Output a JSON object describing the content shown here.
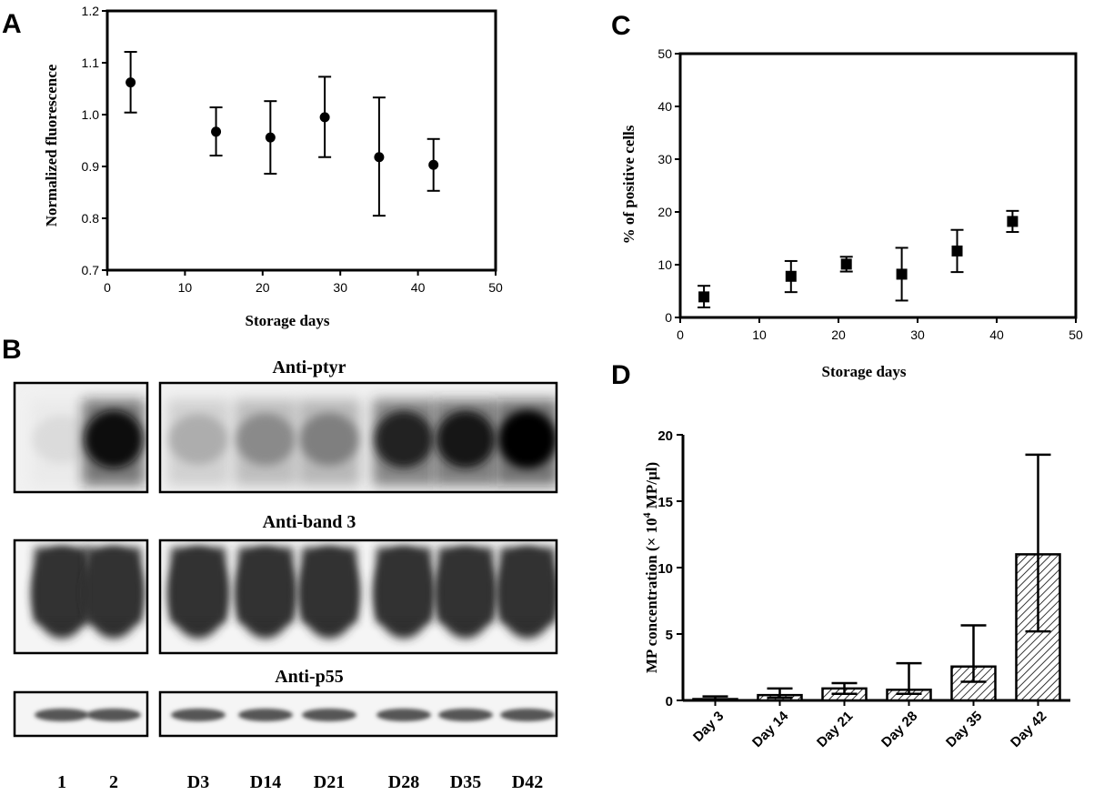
{
  "panels": {
    "A": {
      "letter": "A"
    },
    "B": {
      "letter": "B"
    },
    "C": {
      "letter": "C"
    },
    "D": {
      "letter": "D"
    }
  },
  "chart_data": [
    {
      "id": "A",
      "type": "scatter",
      "xlabel": "Storage days",
      "ylabel": "Normalized fluorescence",
      "xlim": [
        0,
        50
      ],
      "ylim": [
        0.7,
        1.2
      ],
      "xticks": [
        "0",
        "10",
        "20",
        "30",
        "40",
        "50"
      ],
      "yticks": [
        "0.7",
        "0.8",
        "0.9",
        "1.0",
        "1.1",
        "1.2"
      ],
      "marker": "circle",
      "points": [
        {
          "x": 3,
          "y": 1.062,
          "err_low": 1.004,
          "err_high": 1.121
        },
        {
          "x": 14,
          "y": 0.967,
          "err_low": 0.921,
          "err_high": 1.014
        },
        {
          "x": 21,
          "y": 0.956,
          "err_low": 0.886,
          "err_high": 1.026
        },
        {
          "x": 28,
          "y": 0.995,
          "err_low": 0.918,
          "err_high": 1.073
        },
        {
          "x": 35,
          "y": 0.918,
          "err_low": 0.805,
          "err_high": 1.033
        },
        {
          "x": 42,
          "y": 0.903,
          "err_low": 0.853,
          "err_high": 0.953
        }
      ]
    },
    {
      "id": "C",
      "type": "scatter",
      "xlabel": "Storage days",
      "ylabel": "% of positive cells",
      "xlim": [
        0,
        50
      ],
      "ylim": [
        0,
        50
      ],
      "xticks": [
        "0",
        "10",
        "20",
        "30",
        "40",
        "50"
      ],
      "yticks": [
        "0",
        "10",
        "20",
        "30",
        "40",
        "50"
      ],
      "marker": "square",
      "points": [
        {
          "x": 3,
          "y": 3.9,
          "err_low": 1.9,
          "err_high": 6.0
        },
        {
          "x": 14,
          "y": 7.8,
          "err_low": 4.8,
          "err_high": 10.7
        },
        {
          "x": 21,
          "y": 10.1,
          "err_low": 8.7,
          "err_high": 11.5
        },
        {
          "x": 28,
          "y": 8.2,
          "err_low": 3.2,
          "err_high": 13.2
        },
        {
          "x": 35,
          "y": 12.6,
          "err_low": 8.6,
          "err_high": 16.6
        },
        {
          "x": 42,
          "y": 18.2,
          "err_low": 16.2,
          "err_high": 20.2
        }
      ]
    },
    {
      "id": "D",
      "type": "bar",
      "ylabel_main": "MP concentration (× 10",
      "ylabel_sup": "4",
      "ylabel_tail": " MP/µl)",
      "ylim": [
        0,
        20
      ],
      "yticks": [
        "0",
        "5",
        "10",
        "15",
        "20"
      ],
      "categories": [
        "Day 3",
        "Day 14",
        "Day 21",
        "Day 28",
        "Day 35",
        "Day 42"
      ],
      "values": [
        0.1,
        0.4,
        0.9,
        0.8,
        2.55,
        11.0
      ],
      "err_high": [
        0.3,
        0.9,
        1.3,
        2.8,
        5.65,
        18.5
      ],
      "err_low": [
        0.05,
        0.2,
        0.5,
        0.5,
        1.4,
        5.2
      ],
      "fill": "diagonal-hatch"
    }
  ],
  "blot": {
    "sections": [
      {
        "title": "Anti-ptyr"
      },
      {
        "title": "Anti-band 3"
      },
      {
        "title": "Anti-p55"
      }
    ],
    "lanes_left": [
      "1",
      "2"
    ],
    "lanes_right": [
      "D3",
      "D14",
      "D21",
      "D28",
      "D35",
      "D42"
    ],
    "ptyr_intensity_left": [
      0.05,
      0.95
    ],
    "ptyr_intensity_right": [
      0.25,
      0.4,
      0.45,
      0.85,
      0.9,
      1.0
    ]
  }
}
